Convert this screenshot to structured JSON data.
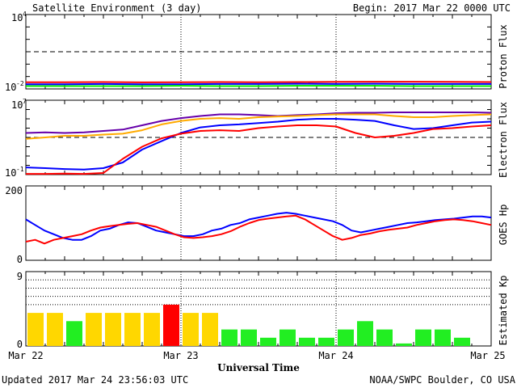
{
  "header": {
    "title": "Satellite Environment (3 day)",
    "begin": "Begin:  2017 Mar 22 0000 UTC"
  },
  "footer": {
    "updated": "Updated 2017 Mar 24 23:56:03 UTC",
    "credit": "NOAA/SWPC Boulder, CO USA",
    "xlabel": "Universal Time"
  },
  "x_ticks": [
    "Mar 22",
    "Mar 23",
    "Mar 24",
    "Mar 25"
  ],
  "colors": {
    "red": "#ff0000",
    "blue": "#0000ff",
    "green": "#00ee00",
    "orange": "#ffaa00",
    "purple": "#6600aa",
    "kp_green": "#22ee22",
    "kp_yellow": "#ffd700",
    "kp_red": "#ff0000"
  },
  "chart_data": [
    {
      "type": "line",
      "panel": "proton",
      "ylabel": "Proton Flux",
      "yscale": "log",
      "ylim": [
        0.01,
        10000
      ],
      "tick_labels": {
        "top": "10",
        "top_exp": "4",
        "bottom": "10",
        "bottom_exp": "-2"
      },
      "threshold": 10,
      "series": [
        {
          "color": "red",
          "values": [
            0.035,
            0.035,
            0.036,
            0.034,
            0.035,
            0.036,
            0.035,
            0.036,
            0.037,
            0.038,
            0.038,
            0.037,
            0.036
          ]
        },
        {
          "color": "blue",
          "values": [
            0.024,
            0.024,
            0.025,
            0.024,
            0.024,
            0.025,
            0.025,
            0.026,
            0.025,
            0.026,
            0.025,
            0.025,
            0.025
          ]
        },
        {
          "color": "green",
          "values": [
            0.017,
            0.017,
            0.017,
            0.017,
            0.018,
            0.017,
            0.017,
            0.018,
            0.018,
            0.018,
            0.017,
            0.017,
            0.017
          ]
        }
      ]
    },
    {
      "type": "line",
      "panel": "electron",
      "ylabel": "Electron Flux",
      "yscale": "log",
      "ylim": [
        0.1,
        10000000
      ],
      "tick_labels": {
        "top": "10",
        "top_exp": "7",
        "bottom": "10",
        "bottom_exp": "-1"
      },
      "threshold": 1000,
      "series": [
        {
          "color": "purple",
          "values": [
            3000,
            3500,
            3000,
            3500,
            5000,
            7000,
            20000,
            60000,
            120000,
            200000,
            300000,
            300000,
            250000,
            200000,
            250000,
            300000,
            400000,
            450000,
            450000,
            500000,
            500000,
            500000,
            500000,
            500000,
            450000
          ]
        },
        {
          "color": "orange",
          "values": [
            700,
            1000,
            1500,
            1500,
            2000,
            2500,
            6000,
            25000,
            60000,
            100000,
            120000,
            100000,
            150000,
            180000,
            200000,
            250000,
            300000,
            300000,
            300000,
            200000,
            150000,
            150000,
            200000,
            250000,
            300000
          ]
        },
        {
          "color": "blue",
          "values": [
            0.6,
            0.5,
            0.4,
            0.35,
            0.5,
            2,
            50,
            400,
            3000,
            12000,
            20000,
            25000,
            35000,
            50000,
            80000,
            100000,
            100000,
            80000,
            60000,
            20000,
            8000,
            10000,
            20000,
            40000,
            50000
          ]
        },
        {
          "color": "red",
          "values": [
            0.12,
            0.12,
            0.13,
            0.12,
            0.15,
            5,
            100,
            800,
            2500,
            5000,
            6000,
            5000,
            10000,
            15000,
            20000,
            20000,
            15000,
            3000,
            1000,
            1500,
            3000,
            8000,
            10000,
            15000,
            20000
          ]
        }
      ]
    },
    {
      "type": "line",
      "panel": "goes_hp",
      "ylabel": "GOES Hp",
      "ylim": [
        0,
        200
      ],
      "ticks": [
        0,
        200
      ],
      "series": [
        {
          "color": "blue",
          "values": [
            110,
            95,
            80,
            70,
            60,
            55,
            55,
            65,
            80,
            85,
            95,
            102,
            100,
            90,
            80,
            75,
            70,
            65,
            65,
            70,
            80,
            85,
            95,
            100,
            110,
            115,
            120,
            125,
            128,
            125,
            120,
            115,
            110,
            105,
            95,
            80,
            75,
            80,
            85,
            90,
            95,
            100,
            102,
            105,
            108,
            110,
            112,
            115,
            118,
            118,
            115
          ]
        },
        {
          "color": "red",
          "values": [
            50,
            55,
            45,
            55,
            60,
            65,
            70,
            80,
            88,
            92,
            95,
            98,
            100,
            95,
            90,
            80,
            70,
            62,
            60,
            62,
            65,
            70,
            78,
            90,
            100,
            108,
            112,
            115,
            118,
            120,
            110,
            95,
            80,
            65,
            55,
            60,
            68,
            72,
            78,
            82,
            85,
            88,
            95,
            100,
            105,
            108,
            110,
            108,
            105,
            100,
            95
          ]
        }
      ]
    },
    {
      "type": "bar",
      "panel": "kp",
      "ylabel": "Estimated Kp",
      "ylim": [
        0,
        9
      ],
      "ticks": [
        0,
        9
      ],
      "gridlines": [
        5,
        6,
        7,
        8,
        9
      ],
      "values": [
        4,
        4,
        3,
        4,
        4,
        4,
        4,
        5,
        4,
        4,
        2,
        2,
        1,
        2,
        1,
        1,
        2,
        3,
        2,
        0.3,
        2,
        2,
        1
      ],
      "colors": [
        "yellow",
        "yellow",
        "green",
        "yellow",
        "yellow",
        "yellow",
        "yellow",
        "red",
        "yellow",
        "yellow",
        "green",
        "green",
        "green",
        "green",
        "green",
        "green",
        "green",
        "green",
        "green",
        "green",
        "green",
        "green",
        "green"
      ]
    }
  ]
}
